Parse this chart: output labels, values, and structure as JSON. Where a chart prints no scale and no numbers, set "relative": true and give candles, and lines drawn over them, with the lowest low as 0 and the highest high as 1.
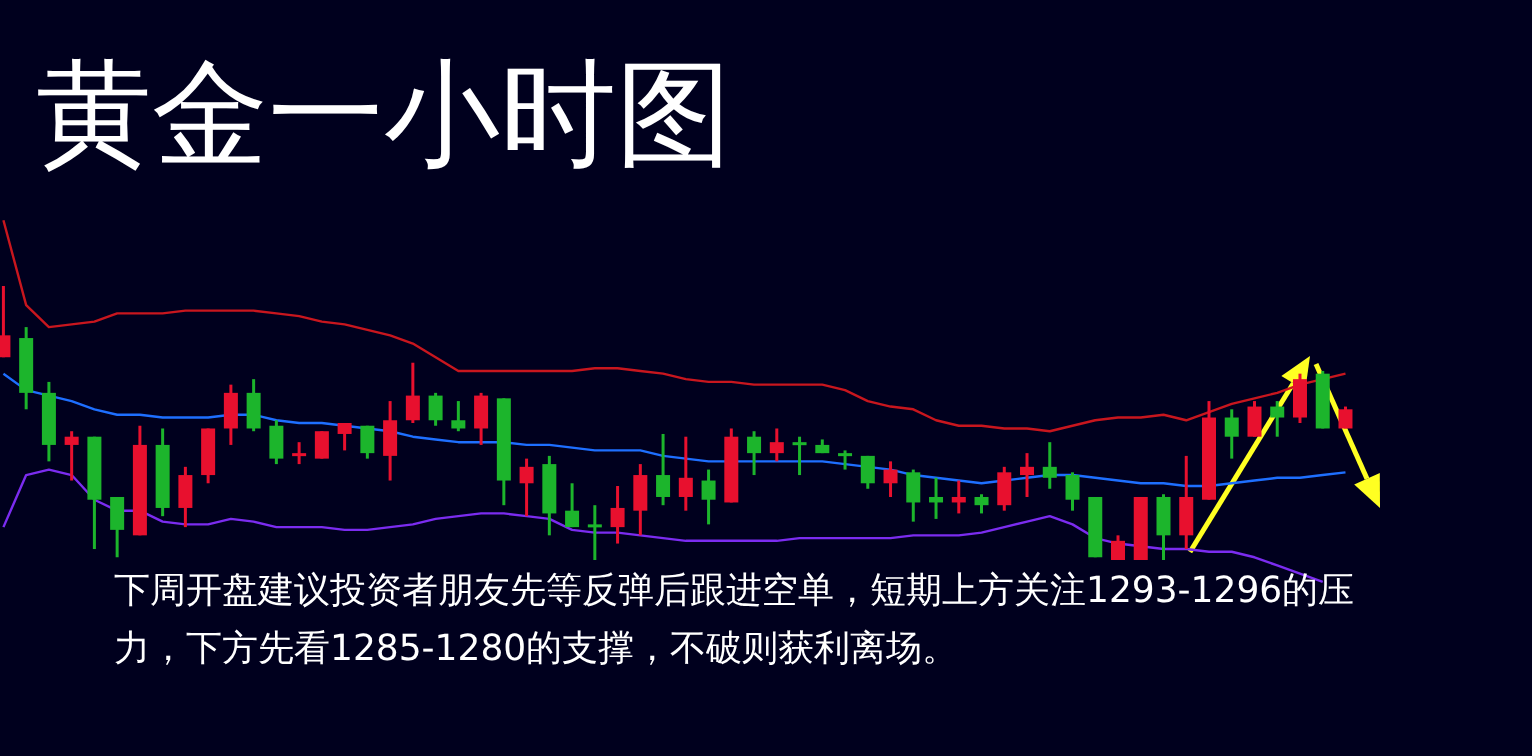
{
  "chart_data": {
    "type": "candlestick",
    "relative": true,
    "title": "黄金一小时图",
    "annotations": [
      "下周开盘建议投资者朋友先等反弹后跟进空单，短期上方关注1293-1296的压力，下方先看1285-1280的支撑，不破则获利离场。"
    ],
    "colors": [
      "#e8102e",
      "#1cb52c",
      "#1cb52c",
      "#e8102e",
      "#1cb52c",
      "#1cb52c",
      "#e8102e",
      "#1cb52c",
      "#e8102e",
      "#e8102e",
      "#e8102e",
      "#1cb52c",
      "#1cb52c",
      "#e8102e",
      "#e8102e",
      "#e8102e",
      "#1cb52c",
      "#e8102e",
      "#e8102e",
      "#1cb52c",
      "#1cb52c",
      "#e8102e",
      "#1cb52c",
      "#e8102e",
      "#1cb52c",
      "#1cb52c",
      "#1cb52c",
      "#e8102e",
      "#e8102e",
      "#1cb52c",
      "#e8102e",
      "#1cb52c",
      "#e8102e",
      "#1cb52c",
      "#e8102e",
      "#1cb52c",
      "#1cb52c",
      "#1cb52c",
      "#1cb52c",
      "#e8102e",
      "#1cb52c",
      "#1cb52c",
      "#e8102e",
      "#1cb52c",
      "#e8102e",
      "#e8102e",
      "#1cb52c",
      "#1cb52c",
      "#1cb52c",
      "#e8102e",
      "#e8102e",
      "#1cb52c",
      "#e8102e",
      "#e8102e",
      "#1cb52c",
      "#e8102e",
      "#1cb52c",
      "#e8102e",
      "#1cb52c",
      "#e8102e"
    ],
    "categories": [
      null,
      null,
      null,
      null,
      null,
      null,
      null,
      null,
      null,
      null,
      null,
      null,
      null,
      null,
      null,
      null,
      null,
      null,
      null,
      null,
      null,
      null,
      null,
      null,
      null,
      null,
      null,
      null,
      null,
      null,
      null,
      null,
      null,
      null,
      null,
      null,
      null,
      null,
      null,
      null,
      null,
      null,
      null,
      null,
      null,
      null,
      null,
      null,
      null,
      null,
      null,
      null,
      null,
      null,
      null,
      null,
      null,
      null,
      null,
      null
    ],
    "ohlc": [
      [
        0.74,
        1.0,
        0.74,
        0.82
      ],
      [
        0.81,
        0.85,
        0.55,
        0.61
      ],
      [
        0.61,
        0.65,
        0.36,
        0.42
      ],
      [
        0.42,
        0.47,
        0.29,
        0.45
      ],
      [
        0.45,
        0.45,
        0.04,
        0.22
      ],
      [
        0.23,
        0.23,
        0.01,
        0.11
      ],
      [
        0.09,
        0.49,
        0.09,
        0.42
      ],
      [
        0.42,
        0.48,
        0.16,
        0.19
      ],
      [
        0.19,
        0.34,
        0.12,
        0.31
      ],
      [
        0.31,
        0.48,
        0.28,
        0.48
      ],
      [
        0.48,
        0.64,
        0.42,
        0.61
      ],
      [
        0.61,
        0.66,
        0.47,
        0.48
      ],
      [
        0.49,
        0.51,
        0.35,
        0.37
      ],
      [
        0.38,
        0.43,
        0.35,
        0.39
      ],
      [
        0.37,
        0.47,
        0.37,
        0.47
      ],
      [
        0.46,
        0.5,
        0.4,
        0.5
      ],
      [
        0.49,
        0.49,
        0.37,
        0.39
      ],
      [
        0.38,
        0.58,
        0.29,
        0.51
      ],
      [
        0.51,
        0.72,
        0.5,
        0.6
      ],
      [
        0.6,
        0.61,
        0.49,
        0.51
      ],
      [
        0.51,
        0.58,
        0.47,
        0.48
      ],
      [
        0.48,
        0.61,
        0.42,
        0.6
      ],
      [
        0.59,
        0.59,
        0.2,
        0.29
      ],
      [
        0.28,
        0.37,
        0.16,
        0.34
      ],
      [
        0.35,
        0.38,
        0.09,
        0.17
      ],
      [
        0.18,
        0.28,
        0.12,
        0.12
      ],
      [
        0.13,
        0.2,
        0.0,
        0.12
      ],
      [
        0.12,
        0.27,
        0.06,
        0.19
      ],
      [
        0.18,
        0.35,
        0.09,
        0.31
      ],
      [
        0.31,
        0.46,
        0.2,
        0.23
      ],
      [
        0.23,
        0.45,
        0.18,
        0.3
      ],
      [
        0.29,
        0.33,
        0.13,
        0.22
      ],
      [
        0.21,
        0.48,
        0.21,
        0.45
      ],
      [
        0.45,
        0.47,
        0.31,
        0.39
      ],
      [
        0.39,
        0.48,
        0.36,
        0.43
      ],
      [
        0.43,
        0.45,
        0.31,
        0.42
      ],
      [
        0.42,
        0.44,
        0.39,
        0.39
      ],
      [
        0.39,
        0.4,
        0.33,
        0.38
      ],
      [
        0.38,
        0.38,
        0.26,
        0.28
      ],
      [
        0.28,
        0.36,
        0.23,
        0.33
      ],
      [
        0.32,
        0.33,
        0.14,
        0.21
      ],
      [
        0.23,
        0.3,
        0.15,
        0.21
      ],
      [
        0.21,
        0.29,
        0.17,
        0.23
      ],
      [
        0.23,
        0.24,
        0.17,
        0.2
      ],
      [
        0.2,
        0.34,
        0.18,
        0.32
      ],
      [
        0.31,
        0.39,
        0.23,
        0.34
      ],
      [
        0.34,
        0.43,
        0.26,
        0.3
      ],
      [
        0.31,
        0.32,
        0.18,
        0.22
      ],
      [
        0.23,
        0.23,
        0.01,
        0.01
      ],
      [
        0.0,
        0.09,
        0.0,
        0.07
      ],
      [
        0.0,
        0.23,
        0.0,
        0.23
      ],
      [
        0.23,
        0.24,
        0.0,
        0.09
      ],
      [
        0.09,
        0.38,
        0.04,
        0.23
      ],
      [
        0.22,
        0.58,
        0.22,
        0.52
      ],
      [
        0.52,
        0.55,
        0.37,
        0.45
      ],
      [
        0.45,
        0.58,
        0.45,
        0.56
      ],
      [
        0.56,
        0.58,
        0.45,
        0.52
      ],
      [
        0.52,
        0.68,
        0.5,
        0.66
      ],
      [
        0.68,
        0.69,
        0.48,
        0.48
      ],
      [
        0.48,
        0.56,
        0.48,
        0.55
      ]
    ],
    "series": [
      {
        "type": "line",
        "color": "#c8161e",
        "values": [
          1.24,
          0.93,
          0.85,
          0.86,
          0.87,
          0.9,
          0.9,
          0.9,
          0.91,
          0.91,
          0.91,
          0.91,
          0.9,
          0.89,
          0.87,
          0.86,
          0.84,
          0.82,
          0.79,
          0.74,
          0.69,
          0.69,
          0.69,
          0.69,
          0.69,
          0.69,
          0.7,
          0.7,
          0.69,
          0.68,
          0.66,
          0.65,
          0.65,
          0.64,
          0.64,
          0.64,
          0.64,
          0.62,
          0.58,
          0.56,
          0.55,
          0.51,
          0.49,
          0.49,
          0.48,
          0.48,
          0.47,
          0.49,
          0.51,
          0.52,
          0.52,
          0.53,
          0.51,
          0.54,
          0.57,
          0.59,
          0.61,
          0.64,
          0.66,
          0.68
        ]
      },
      {
        "type": "line",
        "color": "#1e6fff",
        "values": [
          0.68,
          0.62,
          0.6,
          0.58,
          0.55,
          0.53,
          0.53,
          0.52,
          0.52,
          0.52,
          0.53,
          0.53,
          0.51,
          0.5,
          0.5,
          0.49,
          0.48,
          0.47,
          0.45,
          0.44,
          0.43,
          0.43,
          0.43,
          0.42,
          0.42,
          0.41,
          0.4,
          0.4,
          0.4,
          0.38,
          0.37,
          0.36,
          0.36,
          0.36,
          0.36,
          0.36,
          0.36,
          0.35,
          0.34,
          0.33,
          0.31,
          0.3,
          0.29,
          0.28,
          0.29,
          0.3,
          0.31,
          0.31,
          0.3,
          0.29,
          0.28,
          0.28,
          0.27,
          0.27,
          0.28,
          0.29,
          0.3,
          0.3,
          0.31,
          0.32
        ]
      },
      {
        "type": "line",
        "color": "#7b2cf0",
        "values": [
          0.12,
          0.31,
          0.33,
          0.31,
          0.22,
          0.18,
          0.18,
          0.14,
          0.13,
          0.13,
          0.15,
          0.14,
          0.12,
          0.12,
          0.12,
          0.11,
          0.11,
          0.12,
          0.13,
          0.15,
          0.16,
          0.17,
          0.17,
          0.16,
          0.15,
          0.11,
          0.1,
          0.1,
          0.09,
          0.08,
          0.07,
          0.07,
          0.07,
          0.07,
          0.07,
          0.08,
          0.08,
          0.08,
          0.08,
          0.08,
          0.09,
          0.09,
          0.09,
          0.1,
          0.12,
          0.14,
          0.16,
          0.13,
          0.08,
          0.06,
          0.05,
          0.04,
          0.04,
          0.03,
          0.03,
          0.01,
          -0.02,
          -0.05,
          -0.08,
          null
        ]
      }
    ]
  }
}
